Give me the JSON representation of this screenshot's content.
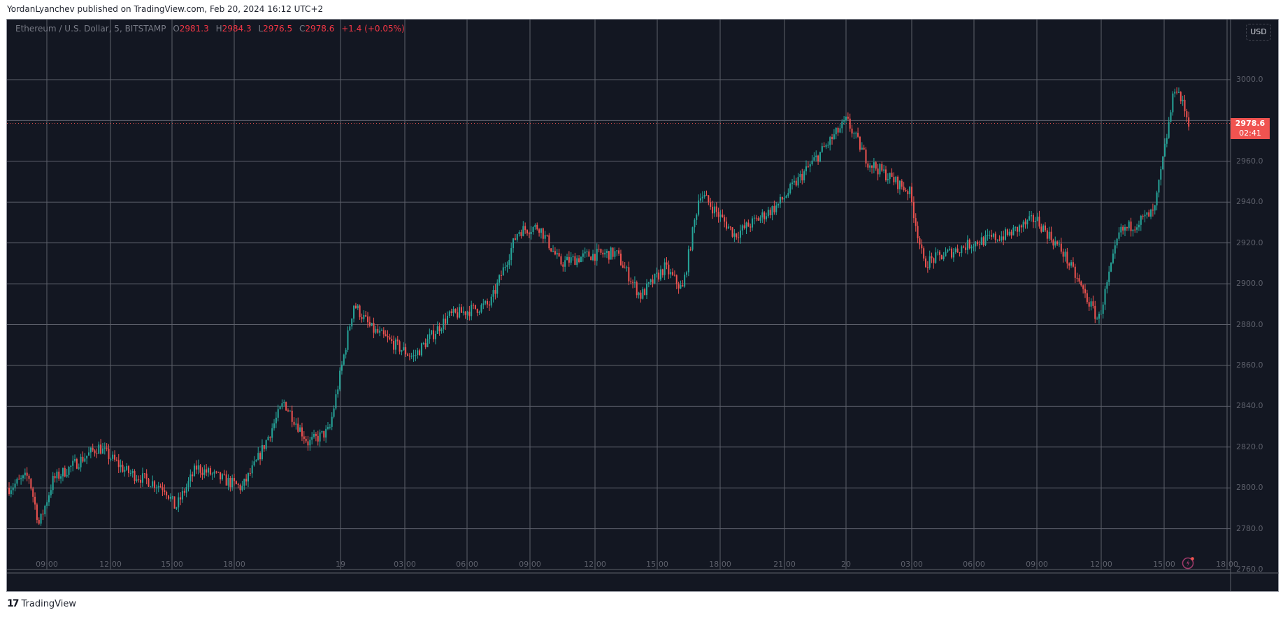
{
  "header": {
    "published_line": "YordanLyanchev published on TradingView.com, Feb 20, 2024 16:12 UTC+2"
  },
  "legend": {
    "symbol": "Ethereum / U.S. Dollar, 5, BITSTAMP",
    "open_label": "O",
    "open": "2981.3",
    "high_label": "H",
    "high": "2984.3",
    "low_label": "L",
    "low": "2976.5",
    "close_label": "C",
    "close": "2978.6",
    "change": "+1.4 (+0.05%)"
  },
  "currency_button": "USD",
  "last_price": {
    "value": "2978.6",
    "countdown": "02:41"
  },
  "colors": {
    "background": "#131722",
    "grid": "#5d606b",
    "up": "#26a69a",
    "down": "#f05350",
    "axis_text": "#5d606b",
    "alert_icon": "#a03a6a"
  },
  "footer": {
    "brand": "TradingView",
    "logo": "17"
  },
  "chart_data": {
    "type": "candlestick",
    "title": "Ethereum / U.S. Dollar, 5, BITSTAMP",
    "interval": "5m",
    "xlabel": "",
    "ylabel": "USD",
    "ylim": [
      2756,
      3012
    ],
    "y_ticks": [
      3000.0,
      2980.0,
      2960.0,
      2940.0,
      2920.0,
      2900.0,
      2880.0,
      2860.0,
      2840.0,
      2820.0,
      2800.0,
      2780.0,
      2760.0
    ],
    "y_tick_labels": [
      "3000.0",
      "2960.0",
      "2940.0",
      "2920.0",
      "2900.0",
      "2880.0",
      "2860.0",
      "2840.0",
      "2820.0",
      "2800.0",
      "2780.0",
      "2760.0"
    ],
    "x_tick_labels": [
      "09:00",
      "12:00",
      "15:00",
      "18:00",
      "19",
      "03:00",
      "06:00",
      "09:00",
      "12:00",
      "15:00",
      "18:00",
      "21:00",
      "20",
      "03:00",
      "06:00",
      "09:00",
      "12:00",
      "15:00",
      "18:00"
    ],
    "grid": true,
    "last_price": 2978.6,
    "price_path": [
      {
        "t": "Feb18 06:40",
        "price": 2800
      },
      {
        "t": "Feb18 07:30",
        "price": 2806
      },
      {
        "t": "Feb18 08:30",
        "price": 2782
      },
      {
        "t": "Feb18 09:30",
        "price": 2804
      },
      {
        "t": "Feb18 11:30",
        "price": 2820
      },
      {
        "t": "Feb18 13:00",
        "price": 2808
      },
      {
        "t": "Feb18 14:30",
        "price": 2800
      },
      {
        "t": "Feb18 15:30",
        "price": 2790
      },
      {
        "t": "Feb18 16:30",
        "price": 2810
      },
      {
        "t": "Feb18 18:00",
        "price": 2800
      },
      {
        "t": "Feb18 19:00",
        "price": 2812
      },
      {
        "t": "Feb18 20:30",
        "price": 2842
      },
      {
        "t": "Feb18 21:30",
        "price": 2822
      },
      {
        "t": "Feb18 23:00",
        "price": 2828
      },
      {
        "t": "Feb19 00:30",
        "price": 2890
      },
      {
        "t": "Feb19 02:00",
        "price": 2878
      },
      {
        "t": "Feb19 03:30",
        "price": 2864
      },
      {
        "t": "Feb19 05:00",
        "price": 2884
      },
      {
        "t": "Feb19 07:00",
        "price": 2890
      },
      {
        "t": "Feb19 08:00",
        "price": 2926
      },
      {
        "t": "Feb19 09:30",
        "price": 2928
      },
      {
        "t": "Feb19 11:00",
        "price": 2910
      },
      {
        "t": "Feb19 13:00",
        "price": 2914
      },
      {
        "t": "Feb19 14:30",
        "price": 2915
      },
      {
        "t": "Feb19 16:00",
        "price": 2894
      },
      {
        "t": "Feb19 17:30",
        "price": 2908
      },
      {
        "t": "Feb19 18:30",
        "price": 2897
      },
      {
        "t": "Feb19 19:30",
        "price": 2945
      },
      {
        "t": "Feb19 21:00",
        "price": 2924
      },
      {
        "t": "Feb19 23:00",
        "price": 2938
      },
      {
        "t": "Feb20 00:00",
        "price": 2980
      },
      {
        "t": "Feb20 01:30",
        "price": 2960
      },
      {
        "t": "Feb20 03:00",
        "price": 2945
      },
      {
        "t": "Feb20 04:00",
        "price": 2910
      },
      {
        "t": "Feb20 06:00",
        "price": 2920
      },
      {
        "t": "Feb20 08:00",
        "price": 2924
      },
      {
        "t": "Feb20 09:30",
        "price": 2932
      },
      {
        "t": "Feb20 11:00",
        "price": 2915
      },
      {
        "t": "Feb20 12:00",
        "price": 2882
      },
      {
        "t": "Feb20 13:30",
        "price": 2925
      },
      {
        "t": "Feb20 15:00",
        "price": 2935
      },
      {
        "t": "Feb20 15:30",
        "price": 2998
      },
      {
        "t": "Feb20 16:10",
        "price": 2978.6
      }
    ]
  }
}
